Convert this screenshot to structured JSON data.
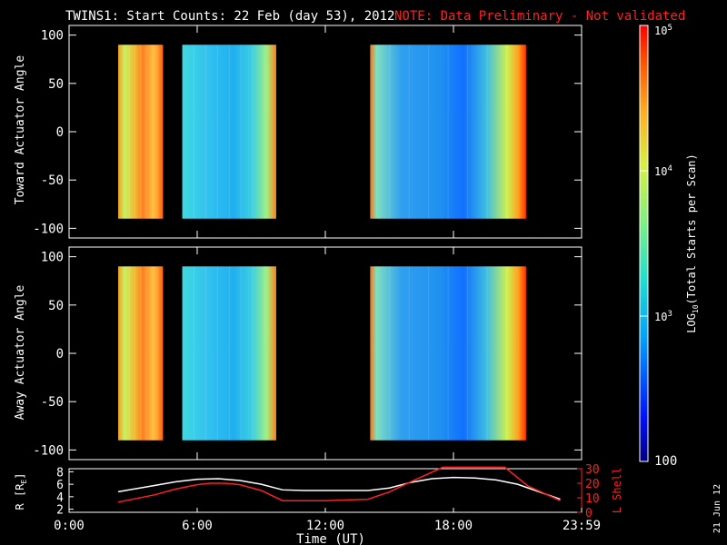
{
  "header": {
    "title": "TWINS1: Start Counts: 22 Feb (day  53), 2012",
    "note": "NOTE: Data Preliminary - Not validated"
  },
  "colorbar": {
    "label": "LOG10(Total Starts per Scan)",
    "label_main": "LOG",
    "label_sub": "10",
    "label_rest": "(Total Starts per Scan)",
    "ticks": [
      {
        "text": "10",
        "sup": "5",
        "value": 100000
      },
      {
        "text": "10",
        "sup": "4",
        "value": 10000
      },
      {
        "text": "10",
        "sup": "3",
        "value": 1000
      },
      {
        "text": "100",
        "sup": "",
        "value": 100
      }
    ],
    "range": [
      100,
      100000
    ],
    "scale": "log"
  },
  "panels": {
    "toward_ylabel": "Toward Actuator Angle",
    "away_ylabel": "Away Actuator Angle",
    "angle_ticks": [
      "100",
      "50",
      "0",
      "-50",
      "-100"
    ],
    "ephem_ylabel_left": "R [R",
    "ephem_ylabel_left_sub": "E",
    "ephem_ylabel_left_end": "]",
    "ephem_left_ticks": [
      "8",
      "6",
      "4",
      "2"
    ],
    "ephem_ylabel_right": "L Shell",
    "ephem_right_ticks": [
      "30",
      "20",
      "10",
      "0"
    ]
  },
  "xaxis": {
    "label": "Time (UT)",
    "ticks": [
      "0:00",
      "6:00",
      "12:00",
      "18:00",
      "23:59"
    ]
  },
  "side_stamp": "21 Jun 12",
  "colors": {
    "accent_red": "#ff2020",
    "background": "#000000",
    "axis": "#ffffff"
  },
  "chart_data": [
    {
      "type": "heatmap",
      "title": "Toward Actuator Angle",
      "ylabel": "Toward Actuator Angle",
      "xlabel": "",
      "xlim": [
        0,
        24
      ],
      "ylim": [
        -110,
        110
      ],
      "colorscale": "log",
      "crange": [
        100,
        100000
      ],
      "data_blocks": [
        {
          "t_start": 2.3,
          "t_end": 4.4,
          "angle_range": [
            -90,
            90
          ],
          "level": "high"
        },
        {
          "t_start": 5.3,
          "t_end": 9.7,
          "angle_range": [
            -90,
            90
          ],
          "level": "low"
        },
        {
          "t_start": 14.1,
          "t_end": 21.4,
          "angle_range": [
            -90,
            90
          ],
          "level": "mixed"
        }
      ]
    },
    {
      "type": "heatmap",
      "title": "Away Actuator Angle",
      "ylabel": "Away Actuator Angle",
      "xlabel": "",
      "xlim": [
        0,
        24
      ],
      "ylim": [
        -110,
        110
      ],
      "colorscale": "log",
      "crange": [
        100,
        100000
      ],
      "data_blocks": [
        {
          "t_start": 2.3,
          "t_end": 4.4,
          "angle_range": [
            -90,
            90
          ],
          "level": "high"
        },
        {
          "t_start": 5.3,
          "t_end": 9.7,
          "angle_range": [
            -90,
            90
          ],
          "level": "low"
        },
        {
          "t_start": 14.1,
          "t_end": 21.4,
          "angle_range": [
            -90,
            90
          ],
          "level": "mixed"
        }
      ]
    },
    {
      "type": "line",
      "xlabel": "Time (UT)",
      "xlim": [
        0,
        24
      ],
      "series": [
        {
          "name": "R [RE]",
          "axis": "left",
          "ylim": [
            1.5,
            8.5
          ],
          "color": "#ffffff",
          "x": [
            2.3,
            4,
            5,
            6,
            7,
            8,
            9,
            10,
            11,
            12,
            13,
            14,
            15,
            16,
            17,
            18,
            19,
            20,
            21,
            22,
            23
          ],
          "y": [
            4.8,
            5.8,
            6.4,
            6.8,
            6.9,
            6.6,
            6.0,
            5.1,
            5.0,
            5.0,
            5.0,
            5.0,
            5.4,
            6.3,
            6.9,
            7.1,
            7.0,
            6.7,
            6.0,
            4.8,
            3.6
          ]
        },
        {
          "name": "L Shell",
          "axis": "right",
          "ylim": [
            0,
            30
          ],
          "color": "#ff2020",
          "x": [
            2.3,
            4,
            5,
            6,
            6.6,
            7.3,
            8,
            9,
            10,
            12,
            14,
            15,
            16,
            17.5,
            20.4,
            21.5,
            23
          ],
          "y": [
            7,
            12,
            16,
            19,
            20,
            20,
            19,
            15,
            8,
            8,
            9,
            14,
            21,
            31,
            31,
            18,
            8
          ]
        }
      ]
    }
  ]
}
